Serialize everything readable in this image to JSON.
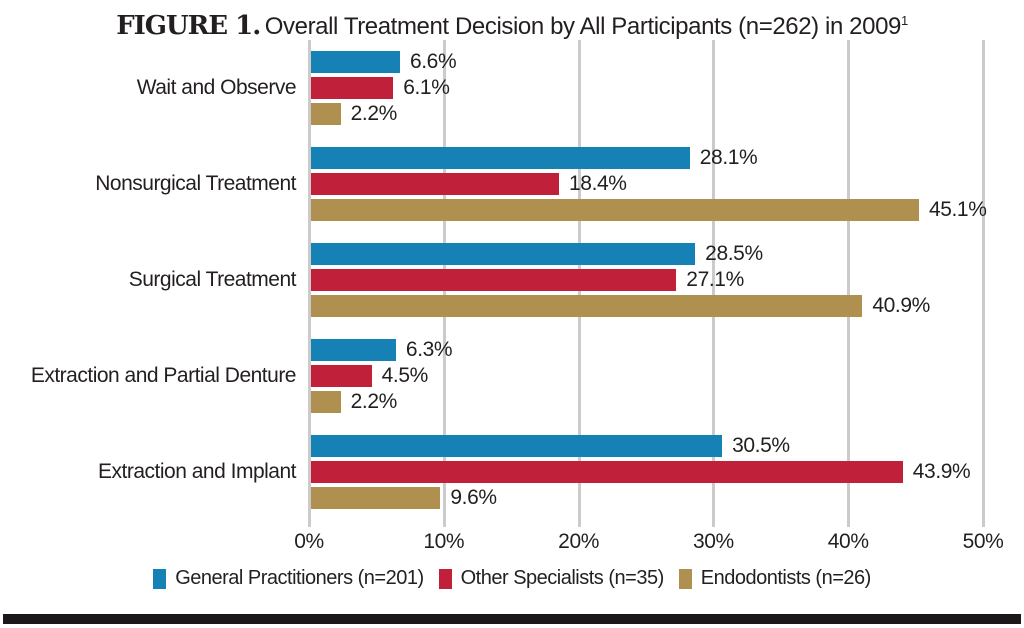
{
  "figure": {
    "label": "FIGURE 1.",
    "title": "Overall Treatment Decision by All Participants (n=262) in 2009",
    "title_superscript": "1"
  },
  "chart_data": {
    "type": "bar",
    "orientation": "horizontal",
    "title": "Overall Treatment Decision by All Participants (n=262) in 2009",
    "categories": [
      "Wait and Observe",
      "Nonsurgical Treatment",
      "Surgical Treatment",
      "Extraction and Partial Denture",
      "Extraction and Implant"
    ],
    "series": [
      {
        "name": "General Practitioners (n=201)",
        "color": "#1581b5",
        "values": [
          6.6,
          28.1,
          28.5,
          6.3,
          30.5
        ]
      },
      {
        "name": "Other Specialists (n=35)",
        "color": "#c1203b",
        "values": [
          6.1,
          18.4,
          27.1,
          4.5,
          43.9
        ]
      },
      {
        "name": "Endodontists (n=26)",
        "color": "#b0904f",
        "values": [
          2.2,
          45.1,
          40.9,
          2.2,
          9.6
        ]
      }
    ],
    "value_suffix": "%",
    "x_ticks": [
      "0%",
      "10%",
      "20%",
      "30%",
      "40%",
      "50%"
    ],
    "xlim": [
      0,
      50
    ],
    "grid": "vertical",
    "legend_position": "bottom"
  },
  "colors": {
    "text": "#231f20",
    "gridline": "#cbcbcb",
    "bottom_rule": "#1c171a",
    "background": "#ffffff"
  }
}
